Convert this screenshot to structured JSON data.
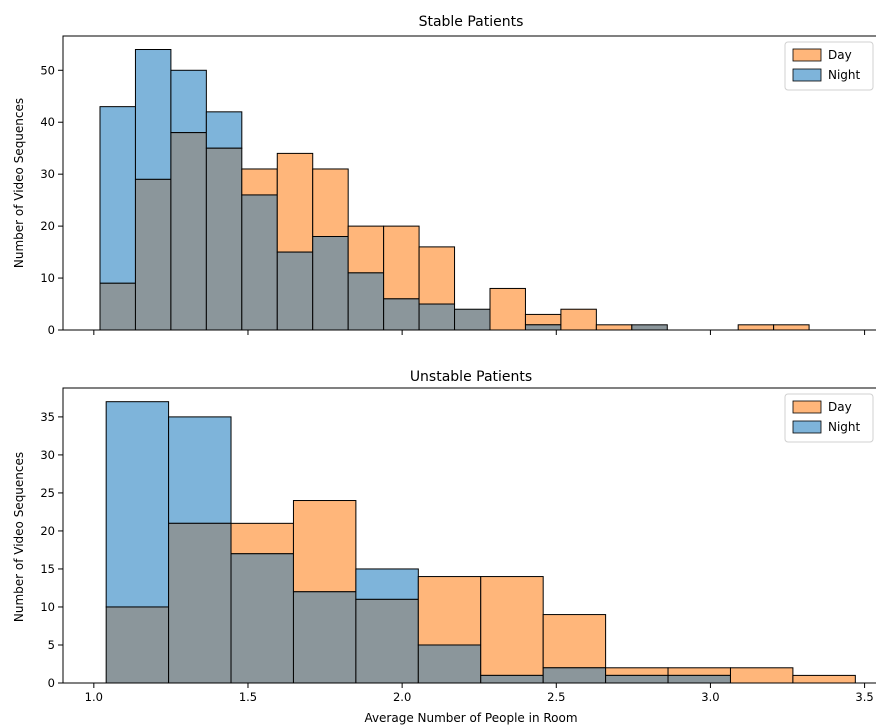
{
  "chart_data": [
    {
      "type": "bar",
      "title": "Stable Patients",
      "xlabel": "",
      "ylabel": "Number of Video Sequences",
      "xlim": [
        0.9,
        3.55
      ],
      "ylim": [
        0,
        56.6
      ],
      "yticks": [
        0,
        10,
        20,
        30,
        40,
        50
      ],
      "xticks": [
        1.0,
        1.5,
        2.0,
        2.5,
        3.0,
        3.5
      ],
      "xtick_labels_shown": false,
      "bin_edges": [
        1.02,
        1.135,
        1.25,
        1.365,
        1.48,
        1.595,
        1.71,
        1.825,
        1.94,
        2.055,
        2.17,
        2.285,
        2.4,
        2.515,
        2.63,
        2.745,
        2.86,
        2.975,
        3.09,
        3.205,
        3.32
      ],
      "series": [
        {
          "name": "Day",
          "color": "#ffb67a",
          "values": [
            9,
            29,
            38,
            35,
            31,
            34,
            31,
            20,
            20,
            16,
            4,
            8,
            3,
            4,
            1,
            1,
            0,
            0,
            1,
            1
          ]
        },
        {
          "name": "Night",
          "color": "#7eb4da",
          "values": [
            43,
            54,
            50,
            42,
            26,
            15,
            18,
            11,
            6,
            5,
            4,
            0,
            1,
            0,
            0,
            1,
            0,
            0,
            0,
            0
          ]
        }
      ],
      "overlap_color": "#8b969b",
      "legend": "top-right",
      "grid": false
    },
    {
      "type": "bar",
      "title": "Unstable Patients",
      "xlabel": "Average Number of People in Room",
      "ylabel": "Number of Video Sequences",
      "xlim": [
        0.9,
        3.55
      ],
      "ylim": [
        0,
        38.8
      ],
      "yticks": [
        0,
        5,
        10,
        15,
        20,
        25,
        30,
        35
      ],
      "xticks": [
        1.0,
        1.5,
        2.0,
        2.5,
        3.0,
        3.5
      ],
      "xtick_labels": [
        "1.0",
        "1.5",
        "2.0",
        "2.5",
        "3.0",
        "3.5"
      ],
      "xtick_labels_shown": true,
      "bin_edges": [
        1.04,
        1.2425,
        1.445,
        1.6475,
        1.85,
        2.0525,
        2.255,
        2.4575,
        2.66,
        2.8625,
        3.065,
        3.2675,
        3.47
      ],
      "series": [
        {
          "name": "Day",
          "color": "#ffb67a",
          "values": [
            10,
            21,
            21,
            24,
            11,
            14,
            14,
            9,
            2,
            2,
            2,
            1
          ]
        },
        {
          "name": "Night",
          "color": "#7eb4da",
          "values": [
            37,
            35,
            17,
            12,
            15,
            5,
            1,
            2,
            1,
            1,
            0,
            0
          ]
        }
      ],
      "overlap_color": "#8b969b",
      "legend": "top-right",
      "grid": false
    }
  ]
}
